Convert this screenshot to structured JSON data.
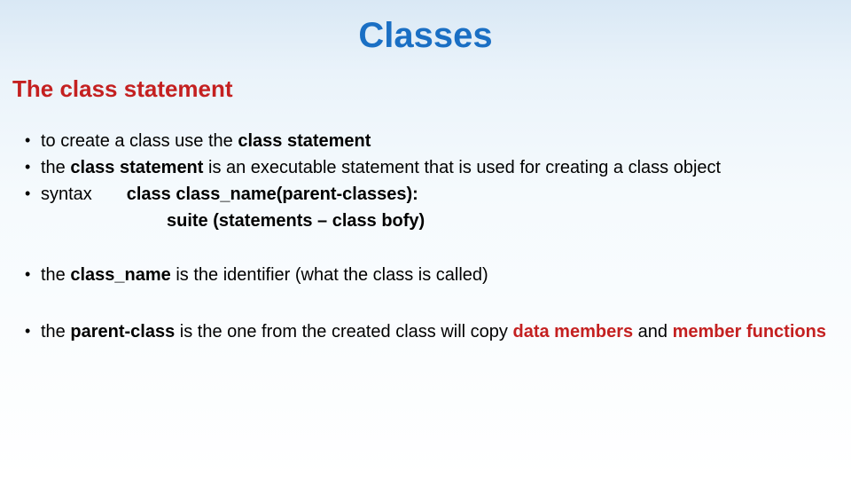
{
  "colors": {
    "title": "#1a6fc4",
    "subtitle": "#c42020",
    "body_text": "#000000",
    "emphasis_black": "#000000",
    "emphasis_red": "#c42020",
    "bg_top": "#d9e8f5",
    "bg_bottom": "#ffffff"
  },
  "typography": {
    "title_fontsize": 40,
    "subtitle_fontsize": 26,
    "body_fontsize": 20,
    "font_family": "Verdana"
  },
  "title": "Classes",
  "subtitle": "The class statement",
  "bullets": [
    {
      "parts": [
        {
          "text": "to create a class use the ",
          "bold": false
        },
        {
          "text": "class statement",
          "bold": true
        }
      ]
    },
    {
      "parts": [
        {
          "text": "the ",
          "bold": false
        },
        {
          "text": "class statement",
          "bold": true
        },
        {
          "text": " is an executable statement that is used for creating a class object",
          "bold": false
        }
      ]
    },
    {
      "parts": [
        {
          "text": "syntax",
          "bold": false
        },
        {
          "text": "       ",
          "bold": false
        },
        {
          "text": "class class_name(parent-classes):",
          "bold": true
        }
      ],
      "line2": "suite (statements – class bofy)"
    }
  ],
  "bullet4": {
    "parts": [
      {
        "text": "the ",
        "bold": false
      },
      {
        "text": "class_name",
        "bold": true
      },
      {
        "text": " is the identifier (what the class is called)",
        "bold": false
      }
    ]
  },
  "bullet5": {
    "parts": [
      {
        "text": "the ",
        "bold": false
      },
      {
        "text": "parent-class",
        "bold": true
      },
      {
        "text": " is the one from the created class will copy ",
        "bold": false
      },
      {
        "text": "data members",
        "bold": true,
        "color": "#c42020"
      },
      {
        "text": " and ",
        "bold": false
      },
      {
        "text": "member functions",
        "bold": true,
        "color": "#c42020"
      }
    ]
  }
}
